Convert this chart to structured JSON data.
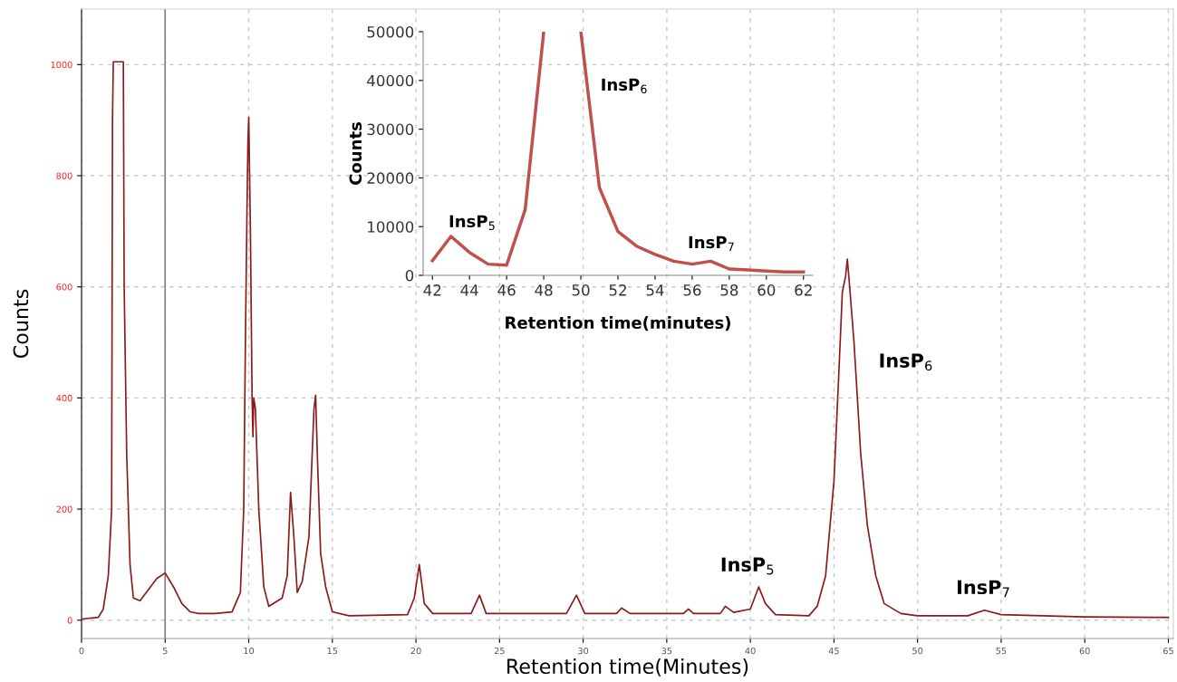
{
  "chart_data": [
    {
      "type": "line",
      "xlabel": "Retention time(Minutes)",
      "ylabel": "Counts",
      "xlim": [
        0,
        65.3
      ],
      "ylim": [
        -33,
        1100
      ],
      "xticks": [
        0,
        5,
        10,
        15,
        20,
        25,
        30,
        35,
        40,
        45,
        50,
        55,
        60,
        65
      ],
      "yticks": [
        0,
        200,
        400,
        600,
        800,
        1000
      ],
      "grid": true,
      "marker": "none",
      "line_style": "solid",
      "series": [
        {
          "color": "#8b1a1a",
          "x": [
            0,
            1,
            1.3,
            1.6,
            1.8,
            1.85,
            1.9,
            2.5,
            2.55,
            2.7,
            2.9,
            3.1,
            3.5,
            4.0,
            4.5,
            5.0,
            5.5,
            6.0,
            6.5,
            7,
            8,
            9,
            9.5,
            9.7,
            9.8,
            9.9,
            9.95,
            10.0,
            10.1,
            10.2,
            10.25,
            10.3,
            10.4,
            10.6,
            10.9,
            11.2,
            12,
            12.3,
            12.5,
            12.7,
            12.9,
            13.2,
            13.6,
            13.9,
            14.0,
            14.1,
            14.3,
            14.6,
            15.0,
            16,
            19.5,
            19.9,
            20.2,
            20.5,
            21,
            23.3,
            23.8,
            24.2,
            29,
            29.6,
            30.1,
            32,
            32.3,
            32.8,
            36,
            36.3,
            36.6,
            38.2,
            38.5,
            39,
            40,
            40.5,
            40.9,
            41.5,
            43.5,
            44,
            44.5,
            45,
            45.3,
            45.5,
            45.7,
            45.8,
            45.9,
            46.2,
            46.6,
            47,
            47.5,
            48,
            49,
            50,
            53,
            54,
            55,
            60,
            65
          ],
          "values": [
            2,
            5,
            20,
            80,
            200,
            900,
            1005,
            1005,
            600,
            300,
            100,
            40,
            35,
            55,
            75,
            85,
            60,
            30,
            15,
            12,
            12,
            15,
            50,
            200,
            500,
            750,
            860,
            905,
            700,
            400,
            330,
            400,
            380,
            200,
            60,
            25,
            40,
            80,
            230,
            150,
            50,
            70,
            150,
            380,
            405,
            300,
            120,
            60,
            15,
            8,
            10,
            40,
            100,
            30,
            12,
            12,
            45,
            12,
            12,
            45,
            12,
            12,
            22,
            12,
            12,
            20,
            12,
            12,
            25,
            14,
            20,
            60,
            30,
            10,
            8,
            25,
            80,
            250,
            450,
            590,
            620,
            650,
            615,
            500,
            300,
            170,
            80,
            30,
            12,
            8,
            8,
            18,
            10,
            6,
            5
          ]
        }
      ],
      "ref_lines": [
        {
          "axis": "x",
          "value": 5,
          "color": "#808080"
        }
      ],
      "annotations": [
        "InsP$_{5}$",
        "InsP$_{6}$",
        "InsP$_{7}$"
      ]
    },
    {
      "type": "line",
      "xlabel": "Retention time(minutes)",
      "ylabel": "Counts",
      "xlim": [
        41.5,
        62.5
      ],
      "ylim": [
        0,
        50000
      ],
      "xticks": [
        42,
        44,
        46,
        48,
        50,
        52,
        54,
        56,
        58,
        60,
        62
      ],
      "yticks": [
        0,
        10000,
        20000,
        30000,
        40000,
        50000
      ],
      "grid": false,
      "marker": "none",
      "line_style": "solid",
      "series": [
        {
          "color": "#c0504d",
          "x": [
            42,
            43,
            44,
            45,
            46,
            47,
            48,
            49,
            50,
            51,
            52,
            53,
            54,
            55,
            56,
            57,
            58,
            59,
            60,
            61,
            62
          ],
          "values": [
            3000,
            8000,
            4700,
            2300,
            2100,
            13500,
            50000,
            null,
            50000,
            18000,
            9000,
            6000,
            4300,
            2900,
            2300,
            2900,
            1300,
            1100,
            900,
            700,
            700
          ]
        }
      ],
      "annotations": [
        "InsP$_{5}$",
        "InsP$_{6}$",
        "InsP$_{7}$"
      ]
    }
  ]
}
